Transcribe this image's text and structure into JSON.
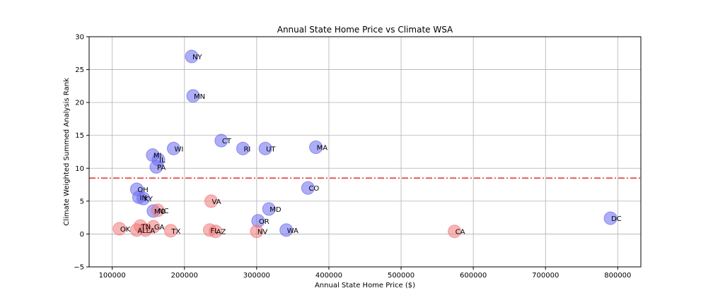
{
  "chart_data": {
    "type": "scatter",
    "title": "Annual State Home Price vs Climate WSA",
    "xlabel": "Annual State Home Price ($)",
    "ylabel": "Climate Weighted Summed Analysis Rank",
    "xlim": [
      68000,
      832000
    ],
    "ylim": [
      -5,
      30
    ],
    "xticks": [
      100000,
      200000,
      300000,
      400000,
      500000,
      600000,
      700000,
      800000
    ],
    "yticks": [
      -5,
      0,
      5,
      10,
      15,
      20,
      25,
      30
    ],
    "grid": true,
    "threshold": {
      "y": 8.5,
      "color": "#e03030",
      "style": "dash-dot"
    },
    "colors": {
      "above": "#6b6bf0",
      "below": "#f07a7a"
    },
    "points": [
      {
        "label": "NY",
        "x": 210000,
        "y": 27.0,
        "group": "above"
      },
      {
        "label": "MN",
        "x": 212000,
        "y": 21.0,
        "group": "above"
      },
      {
        "label": "CT",
        "x": 251000,
        "y": 14.2,
        "group": "above"
      },
      {
        "label": "RI",
        "x": 281000,
        "y": 13.0,
        "group": "above"
      },
      {
        "label": "UT",
        "x": 312000,
        "y": 13.0,
        "group": "above"
      },
      {
        "label": "MA",
        "x": 382000,
        "y": 13.2,
        "group": "above"
      },
      {
        "label": "WI",
        "x": 185000,
        "y": 13.0,
        "group": "above"
      },
      {
        "label": "MI",
        "x": 156000,
        "y": 12.0,
        "group": "above"
      },
      {
        "label": "IL",
        "x": 164000,
        "y": 11.3,
        "group": "above"
      },
      {
        "label": "PA",
        "x": 161000,
        "y": 10.2,
        "group": "above"
      },
      {
        "label": "OH",
        "x": 134000,
        "y": 6.8,
        "group": "above"
      },
      {
        "label": "IN",
        "x": 137000,
        "y": 5.6,
        "group": "above"
      },
      {
        "label": "KY",
        "x": 143000,
        "y": 5.4,
        "group": "above"
      },
      {
        "label": "CO",
        "x": 371000,
        "y": 7.0,
        "group": "above"
      },
      {
        "label": "MD",
        "x": 317000,
        "y": 3.8,
        "group": "above"
      },
      {
        "label": "OR",
        "x": 302000,
        "y": 2.0,
        "group": "above"
      },
      {
        "label": "WA",
        "x": 341000,
        "y": 0.6,
        "group": "above"
      },
      {
        "label": "DC",
        "x": 790000,
        "y": 2.4,
        "group": "above"
      },
      {
        "label": "MO",
        "x": 157000,
        "y": 3.5,
        "group": "above"
      },
      {
        "label": "VA",
        "x": 237000,
        "y": 5.0,
        "group": "below"
      },
      {
        "label": "NC",
        "x": 163000,
        "y": 3.6,
        "group": "below"
      },
      {
        "label": "OK",
        "x": 110000,
        "y": 0.8,
        "group": "below"
      },
      {
        "label": "TN",
        "x": 139000,
        "y": 1.2,
        "group": "below"
      },
      {
        "label": "AL",
        "x": 134000,
        "y": 0.6,
        "group": "below"
      },
      {
        "label": "LA",
        "x": 146000,
        "y": 0.6,
        "group": "below"
      },
      {
        "label": "GA",
        "x": 157000,
        "y": 1.1,
        "group": "below"
      },
      {
        "label": "TX",
        "x": 181000,
        "y": 0.5,
        "group": "below"
      },
      {
        "label": "FL",
        "x": 235000,
        "y": 0.6,
        "group": "below"
      },
      {
        "label": "AZ",
        "x": 243000,
        "y": 0.4,
        "group": "below"
      },
      {
        "label": "NV",
        "x": 300000,
        "y": 0.4,
        "group": "below"
      },
      {
        "label": "CA",
        "x": 574000,
        "y": 0.4,
        "group": "below"
      }
    ]
  }
}
